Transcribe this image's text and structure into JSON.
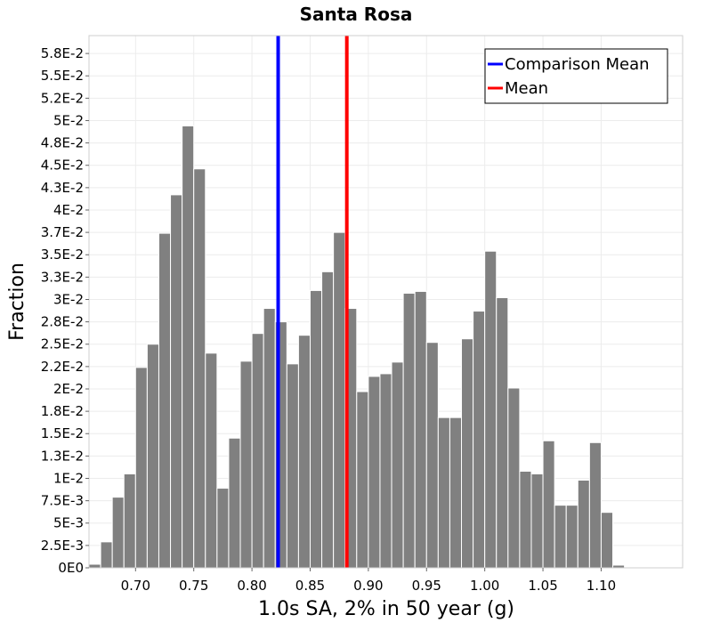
{
  "chart_data": {
    "type": "bar",
    "title": "Santa Rosa",
    "xlabel": "1.0s SA, 2% in 50 year (g)",
    "ylabel": "Fraction",
    "xlim": [
      0.66,
      1.17
    ],
    "ylim": [
      0,
      0.0595
    ],
    "grid": true,
    "legend_position": "top-right",
    "bin_width": 0.01,
    "x_ticks": [
      {
        "value": 0.7,
        "label": "0.70"
      },
      {
        "value": 0.75,
        "label": "0.75"
      },
      {
        "value": 0.8,
        "label": "0.80"
      },
      {
        "value": 0.85,
        "label": "0.85"
      },
      {
        "value": 0.9,
        "label": "0.90"
      },
      {
        "value": 0.95,
        "label": "0.95"
      },
      {
        "value": 1.0,
        "label": "1.00"
      },
      {
        "value": 1.05,
        "label": "1.05"
      },
      {
        "value": 1.1,
        "label": "1.10"
      }
    ],
    "y_ticks": [
      {
        "value": 0,
        "label": "0E0"
      },
      {
        "value": 0.0025,
        "label": "2.5E-3"
      },
      {
        "value": 0.005,
        "label": "5E-3"
      },
      {
        "value": 0.0075,
        "label": "7.5E-3"
      },
      {
        "value": 0.01,
        "label": "1E-2"
      },
      {
        "value": 0.0125,
        "label": "1.3E-2"
      },
      {
        "value": 0.015,
        "label": "1.5E-2"
      },
      {
        "value": 0.0175,
        "label": "1.8E-2"
      },
      {
        "value": 0.02,
        "label": "2E-2"
      },
      {
        "value": 0.0225,
        "label": "2.2E-2"
      },
      {
        "value": 0.025,
        "label": "2.5E-2"
      },
      {
        "value": 0.0275,
        "label": "2.8E-2"
      },
      {
        "value": 0.03,
        "label": "3E-2"
      },
      {
        "value": 0.0325,
        "label": "3.3E-2"
      },
      {
        "value": 0.035,
        "label": "3.5E-2"
      },
      {
        "value": 0.0375,
        "label": "3.7E-2"
      },
      {
        "value": 0.04,
        "label": "4E-2"
      },
      {
        "value": 0.0425,
        "label": "4.3E-2"
      },
      {
        "value": 0.045,
        "label": "4.5E-2"
      },
      {
        "value": 0.0475,
        "label": "4.8E-2"
      },
      {
        "value": 0.05,
        "label": "5E-2"
      },
      {
        "value": 0.0525,
        "label": "5.2E-2"
      },
      {
        "value": 0.055,
        "label": "5.5E-2"
      },
      {
        "value": 0.0575,
        "label": "5.8E-2"
      }
    ],
    "bins": [
      {
        "x": 0.665,
        "y": 0.0004
      },
      {
        "x": 0.675,
        "y": 0.0029
      },
      {
        "x": 0.685,
        "y": 0.0079
      },
      {
        "x": 0.695,
        "y": 0.0105
      },
      {
        "x": 0.705,
        "y": 0.0224
      },
      {
        "x": 0.715,
        "y": 0.025
      },
      {
        "x": 0.725,
        "y": 0.0374
      },
      {
        "x": 0.735,
        "y": 0.0417
      },
      {
        "x": 0.745,
        "y": 0.0494
      },
      {
        "x": 0.755,
        "y": 0.0446
      },
      {
        "x": 0.765,
        "y": 0.024
      },
      {
        "x": 0.775,
        "y": 0.0089
      },
      {
        "x": 0.785,
        "y": 0.0145
      },
      {
        "x": 0.795,
        "y": 0.0231
      },
      {
        "x": 0.805,
        "y": 0.0262
      },
      {
        "x": 0.815,
        "y": 0.029
      },
      {
        "x": 0.825,
        "y": 0.0275
      },
      {
        "x": 0.835,
        "y": 0.0228
      },
      {
        "x": 0.845,
        "y": 0.026
      },
      {
        "x": 0.855,
        "y": 0.031
      },
      {
        "x": 0.865,
        "y": 0.0331
      },
      {
        "x": 0.875,
        "y": 0.0375
      },
      {
        "x": 0.885,
        "y": 0.029
      },
      {
        "x": 0.895,
        "y": 0.0197
      },
      {
        "x": 0.905,
        "y": 0.0214
      },
      {
        "x": 0.915,
        "y": 0.0217
      },
      {
        "x": 0.925,
        "y": 0.023
      },
      {
        "x": 0.935,
        "y": 0.0307
      },
      {
        "x": 0.945,
        "y": 0.0309
      },
      {
        "x": 0.955,
        "y": 0.0252
      },
      {
        "x": 0.965,
        "y": 0.0168
      },
      {
        "x": 0.975,
        "y": 0.0168
      },
      {
        "x": 0.985,
        "y": 0.0256
      },
      {
        "x": 0.995,
        "y": 0.0287
      },
      {
        "x": 1.005,
        "y": 0.0354
      },
      {
        "x": 1.015,
        "y": 0.0302
      },
      {
        "x": 1.025,
        "y": 0.0201
      },
      {
        "x": 1.035,
        "y": 0.0108
      },
      {
        "x": 1.045,
        "y": 0.0105
      },
      {
        "x": 1.055,
        "y": 0.0142
      },
      {
        "x": 1.065,
        "y": 0.007
      },
      {
        "x": 1.075,
        "y": 0.007
      },
      {
        "x": 1.085,
        "y": 0.0098
      },
      {
        "x": 1.095,
        "y": 0.014
      },
      {
        "x": 1.105,
        "y": 0.0062
      },
      {
        "x": 1.115,
        "y": 0.0003
      }
    ],
    "lines": [
      {
        "name": "Comparison Mean",
        "x": 0.8225,
        "color": "#0000ff"
      },
      {
        "name": "Mean",
        "x": 0.8815,
        "color": "#ff0000"
      }
    ]
  }
}
